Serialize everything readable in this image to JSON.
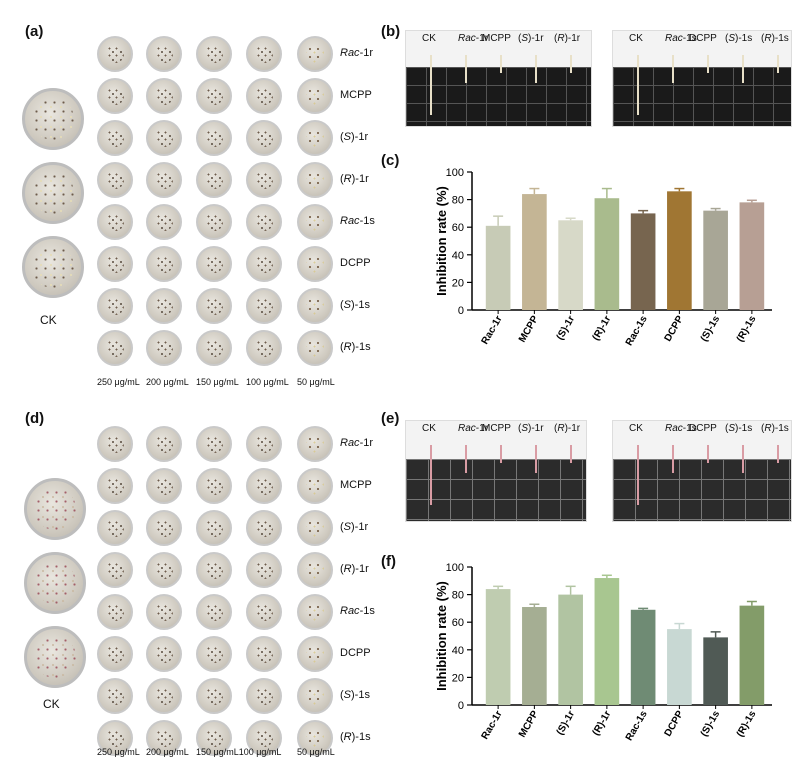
{
  "panels": {
    "a": "(a)",
    "b": "(b)",
    "c": "(c)",
    "d": "(d)",
    "e": "(e)",
    "f": "(f)"
  },
  "dish_grid": {
    "row_labels": [
      {
        "prefix": "",
        "italic": "Rac",
        "suffix": "-1r"
      },
      {
        "prefix": "MCPP",
        "italic": "",
        "suffix": ""
      },
      {
        "prefix": "(",
        "italic": "S",
        "suffix": ")-1r"
      },
      {
        "prefix": "(",
        "italic": "R",
        "suffix": ")-1r"
      },
      {
        "prefix": "",
        "italic": "Rac",
        "suffix": "-1s"
      },
      {
        "prefix": "DCPP",
        "italic": "",
        "suffix": ""
      },
      {
        "prefix": "(",
        "italic": "S",
        "suffix": ")-1s"
      },
      {
        "prefix": "(",
        "italic": "R",
        "suffix": ")-1s"
      }
    ],
    "ck_label": "CK",
    "concentrations_a": [
      "250 μg/mL",
      "200 μg/mL",
      "150 μg/mL",
      "100 μg/mL",
      "50 μg/mL"
    ],
    "concentrations_d": [
      "250 μg/mL",
      "200 μg/mL",
      "150 μg/mL100 μg/mL",
      "",
      "50 μg/mL"
    ]
  },
  "photos": {
    "b_left": [
      {
        "prefix": "CK",
        "italic": "",
        "suffix": ""
      },
      {
        "prefix": "",
        "italic": "Rac",
        "suffix": "-1r"
      },
      {
        "prefix": "MCPP",
        "italic": "",
        "suffix": ""
      },
      {
        "prefix": "(",
        "italic": "S",
        "suffix": ")-1r"
      },
      {
        "prefix": "(",
        "italic": "R",
        "suffix": ")-1r"
      }
    ],
    "b_right": [
      {
        "prefix": "CK",
        "italic": "",
        "suffix": ""
      },
      {
        "prefix": "",
        "italic": "Rac",
        "suffix": "-1s"
      },
      {
        "prefix": "DCPP",
        "italic": "",
        "suffix": ""
      },
      {
        "prefix": "(",
        "italic": "S",
        "suffix": ")-1s"
      },
      {
        "prefix": "(",
        "italic": "R",
        "suffix": ")-1s"
      }
    ],
    "e_left": [
      {
        "prefix": "CK",
        "italic": "",
        "suffix": ""
      },
      {
        "prefix": "",
        "italic": "Rac",
        "suffix": "-1r"
      },
      {
        "prefix": "MCPP",
        "italic": "",
        "suffix": ""
      },
      {
        "prefix": "(",
        "italic": "S",
        "suffix": ")-1r"
      },
      {
        "prefix": "(",
        "italic": "R",
        "suffix": ")-1r"
      }
    ],
    "e_right": [
      {
        "prefix": "CK",
        "italic": "",
        "suffix": ""
      },
      {
        "prefix": "",
        "italic": "Rac",
        "suffix": "-1s"
      },
      {
        "prefix": "DCPP",
        "italic": "",
        "suffix": ""
      },
      {
        "prefix": "(",
        "italic": "S",
        "suffix": ")-1s"
      },
      {
        "prefix": "(",
        "italic": "R",
        "suffix": ")-1s"
      }
    ]
  },
  "chart_data": [
    {
      "panel": "c",
      "type": "bar",
      "categories": [
        "Rac-1r",
        "MCPP",
        "(S)-1r",
        "(R)-1r",
        "Rac-1s",
        "DCPP",
        "(S)-1s",
        "(R)-1s"
      ],
      "values": [
        61,
        84,
        65,
        81,
        70,
        86,
        72,
        78
      ],
      "errors": [
        7,
        4,
        1.5,
        7,
        2,
        2,
        1.5,
        1.5
      ],
      "colors": [
        "#c7cbb6",
        "#c4b595",
        "#d7d9c8",
        "#a9bb8d",
        "#77654f",
        "#a07633",
        "#a8a696",
        "#b79f94"
      ],
      "ylabel": "Inhibition rate  (%)",
      "xlabel": "",
      "ylim": [
        0,
        100
      ],
      "yticks": [
        0,
        20,
        40,
        60,
        80,
        100
      ],
      "grid": false
    },
    {
      "panel": "f",
      "type": "bar",
      "categories": [
        "Rac-1r",
        "MCPP",
        "(S)-1r",
        "(R)-1r",
        "Rac-1s",
        "DCPP",
        "(S)-1s",
        "(R)-1s"
      ],
      "values": [
        84,
        71,
        80,
        92,
        69,
        55,
        49,
        72
      ],
      "errors": [
        2,
        2,
        6,
        2,
        1,
        4,
        4,
        3
      ],
      "colors": [
        "#bfccb0",
        "#a5ae93",
        "#b1c4a2",
        "#a8c690",
        "#6f8b74",
        "#c8d8d3",
        "#505a55",
        "#839c69"
      ],
      "ylabel": "Inhibition rate  (%)",
      "xlabel": "",
      "ylim": [
        0,
        100
      ],
      "yticks": [
        0,
        20,
        40,
        60,
        80,
        100
      ],
      "grid": false
    }
  ]
}
